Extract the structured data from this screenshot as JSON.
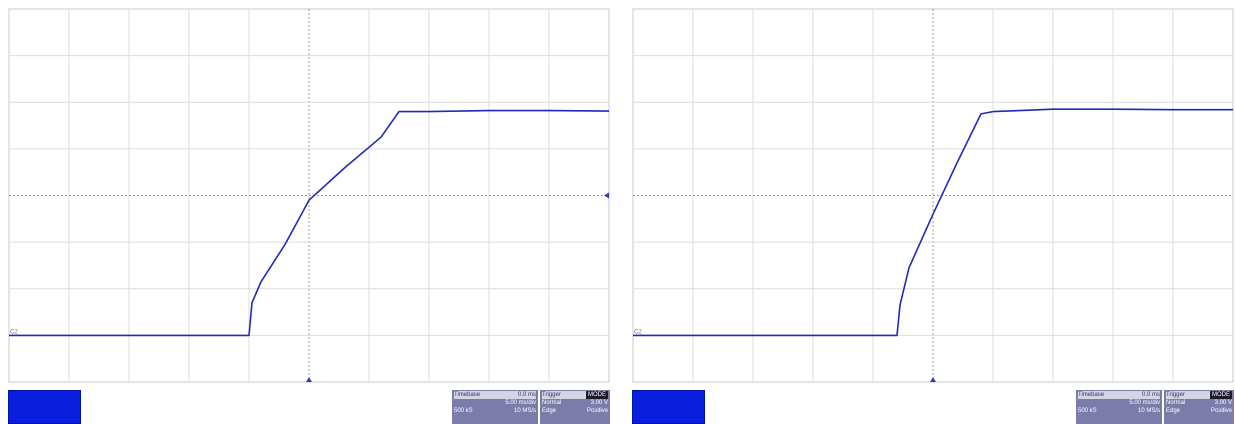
{
  "chart_data": [
    {
      "type": "line",
      "title": "",
      "xlabel": "",
      "ylabel": "",
      "grid": true,
      "xlim": [
        0,
        10
      ],
      "ylim": [
        0,
        8
      ],
      "channel_marker": "C2",
      "trigger_level_marker": true,
      "series": [
        {
          "color": "#1f2bb8",
          "x": [
            0,
            4.0,
            4.05,
            4.2,
            4.6,
            5.0,
            5.6,
            6.2,
            6.5,
            7.0,
            8.0,
            9.0,
            10.0
          ],
          "y": [
            1.0,
            1.0,
            1.7,
            2.15,
            2.95,
            3.9,
            4.6,
            5.25,
            5.8,
            5.8,
            5.82,
            5.82,
            5.81
          ]
        }
      ],
      "info": {
        "timebase_label": "Timebase",
        "timebase_value": "0.0 ms",
        "timebase_div": "5.00 ms/div",
        "timebase_sr1": "500 kS",
        "timebase_sr2": "10 MS/s",
        "trigger_label": "Trigger",
        "trigger_mode": "MODE",
        "trigger_type": "Normal",
        "trigger_level": "3.00 V",
        "trigger_edge": "Edge",
        "trigger_slope": "Positive"
      }
    },
    {
      "type": "line",
      "title": "",
      "xlabel": "",
      "ylabel": "",
      "grid": true,
      "xlim": [
        0,
        10
      ],
      "ylim": [
        0,
        8
      ],
      "channel_marker": "C2",
      "trigger_level_marker": false,
      "series": [
        {
          "color": "#1f2bb8",
          "x": [
            0,
            4.4,
            4.45,
            4.6,
            5.0,
            5.4,
            5.8,
            6.0,
            7.0,
            8.0,
            9.0,
            10.0
          ],
          "y": [
            1.0,
            1.0,
            1.65,
            2.45,
            3.6,
            4.7,
            5.75,
            5.8,
            5.85,
            5.85,
            5.84,
            5.84
          ]
        }
      ],
      "info": {
        "timebase_label": "Timebase",
        "timebase_value": "0.0 ms",
        "timebase_div": "5.00 ms/div",
        "timebase_sr1": "500 kS",
        "timebase_sr2": "10 MS/s",
        "trigger_label": "Trigger",
        "trigger_mode": "MODE",
        "trigger_type": "Normal",
        "trigger_level": "3.00 V",
        "trigger_edge": "Edge",
        "trigger_slope": "Positive"
      }
    }
  ]
}
